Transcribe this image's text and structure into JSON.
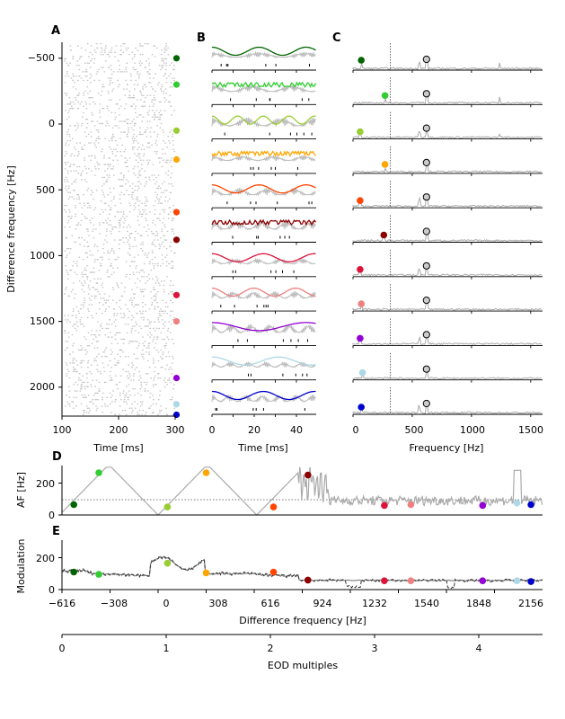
{
  "panels": {
    "A": {
      "letter": "A",
      "xlabel": "Time [ms]",
      "ylabel": "Difference frequency [Hz]",
      "xticks": [
        "100",
        "200",
        "300"
      ],
      "yticks": [
        "−500",
        "0",
        "500",
        "1000",
        "1500",
        "2000"
      ]
    },
    "B": {
      "letter": "B",
      "xlabel": "Time [ms]",
      "xticks": [
        "0",
        "20",
        "40"
      ]
    },
    "C": {
      "letter": "C",
      "xlabel": "Frequency [Hz]",
      "xticks": [
        "0",
        "500",
        "1000",
        "1500"
      ]
    },
    "D": {
      "letter": "D",
      "ylabel": "AF [Hz]",
      "yticks": [
        "0",
        "200"
      ]
    },
    "E": {
      "letter": "E",
      "ylabel": "Modulation",
      "xlabel": "Difference frequency [Hz]",
      "yticks": [
        "0",
        "200"
      ],
      "xticks": [
        "−616",
        "−308",
        "0",
        "308",
        "616",
        "924",
        "1232",
        "1540",
        "1848",
        "2156"
      ]
    },
    "EOD": {
      "xlabel": "EOD multiples",
      "xticks": [
        "0",
        "1",
        "2",
        "3",
        "4"
      ]
    }
  },
  "chart_data": [
    {
      "panel": "A",
      "type": "scatter",
      "description_role": "spike raster across difference frequencies",
      "xlabel": "Time [ms]",
      "ylabel": "Difference frequency [Hz]",
      "xlim": [
        100,
        300
      ],
      "ylim": [
        2250,
        -610
      ],
      "selected_df": [
        -500,
        -300,
        50,
        270,
        670,
        880,
        1300,
        1500,
        1930,
        2130,
        2210
      ],
      "colors": [
        "#006400",
        "#32cd32",
        "#9acd32",
        "#ffa500",
        "#ff4500",
        "#8b0000",
        "#dc143c",
        "#f08080",
        "#9400d3",
        "#add8e6",
        "#0000cd"
      ]
    },
    {
      "panel": "B",
      "type": "line",
      "xlabel": "Time [ms]",
      "xlim": [
        0,
        50
      ],
      "n_rows": 11
    },
    {
      "panel": "C",
      "type": "line",
      "xlabel": "Frequency [Hz]",
      "xlim": [
        0,
        1600
      ],
      "eod_line": 316,
      "circle_freq": 620,
      "af_marker_freq": [
        70,
        270,
        60,
        270,
        60,
        260,
        60,
        70,
        60,
        80,
        70
      ]
    },
    {
      "panel": "D",
      "type": "line",
      "ylabel": "AF [Hz]",
      "xlim": [
        -616,
        2464
      ],
      "ylim": [
        0,
        310
      ],
      "ref_line": 95,
      "points": {
        "x": [
          -540,
          -380,
          60,
          308,
          740,
          960,
          1450,
          1620,
          2080,
          2300,
          2390
        ],
        "y": [
          65,
          265,
          50,
          265,
          50,
          250,
          60,
          65,
          60,
          75,
          65
        ]
      }
    },
    {
      "panel": "E",
      "type": "line",
      "ylabel": "Modulation",
      "xlabel": "Difference frequency [Hz]",
      "xlim": [
        -616,
        2464
      ],
      "ylim": [
        0,
        310
      ],
      "points": {
        "x": [
          -540,
          -380,
          60,
          308,
          740,
          960,
          1450,
          1620,
          2080,
          2300,
          2390
        ],
        "y": [
          110,
          95,
          165,
          105,
          110,
          60,
          55,
          55,
          55,
          55,
          50
        ]
      }
    },
    {
      "panel": "EOD",
      "type": "line",
      "xlabel": "EOD multiples",
      "xlim": [
        0,
        4.65
      ]
    }
  ]
}
